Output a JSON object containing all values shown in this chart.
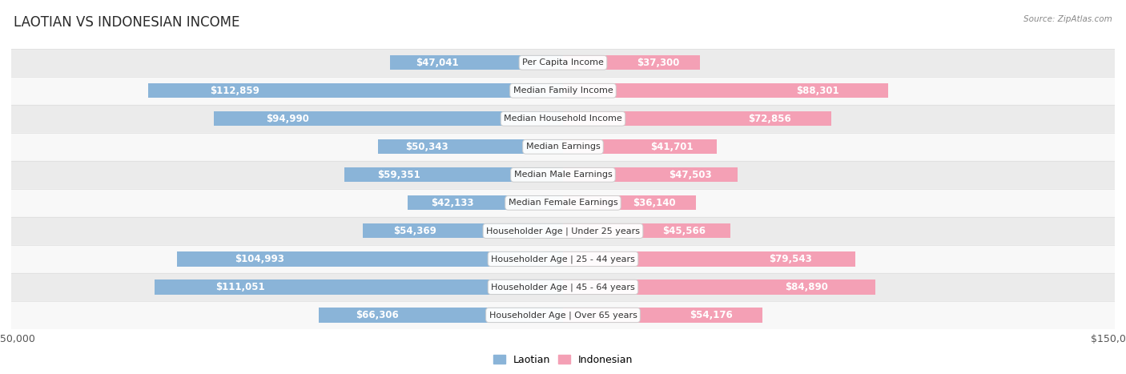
{
  "title": "LAOTIAN VS INDONESIAN INCOME",
  "source": "Source: ZipAtlas.com",
  "categories": [
    "Per Capita Income",
    "Median Family Income",
    "Median Household Income",
    "Median Earnings",
    "Median Male Earnings",
    "Median Female Earnings",
    "Householder Age | Under 25 years",
    "Householder Age | 25 - 44 years",
    "Householder Age | 45 - 64 years",
    "Householder Age | Over 65 years"
  ],
  "laotian_values": [
    47041,
    112859,
    94990,
    50343,
    59351,
    42133,
    54369,
    104993,
    111051,
    66306
  ],
  "indonesian_values": [
    37300,
    88301,
    72856,
    41701,
    47503,
    36140,
    45566,
    79543,
    84890,
    54176
  ],
  "laotian_labels": [
    "$47,041",
    "$112,859",
    "$94,990",
    "$50,343",
    "$59,351",
    "$42,133",
    "$54,369",
    "$104,993",
    "$111,051",
    "$66,306"
  ],
  "indonesian_labels": [
    "$37,300",
    "$88,301",
    "$72,856",
    "$41,701",
    "$47,503",
    "$36,140",
    "$45,566",
    "$79,543",
    "$84,890",
    "$54,176"
  ],
  "laotian_color": "#8ab4d8",
  "indonesian_color": "#f4a0b5",
  "axis_limit": 150000,
  "background_color": "#ffffff",
  "row_bg_even": "#ebebeb",
  "row_bg_odd": "#f8f8f8",
  "label_fontsize": 8.5,
  "title_fontsize": 12,
  "category_fontsize": 8,
  "legend_color_laotian": "#8ab4d8",
  "legend_color_indonesian": "#f4a0b5",
  "inside_label_threshold": 0.22
}
